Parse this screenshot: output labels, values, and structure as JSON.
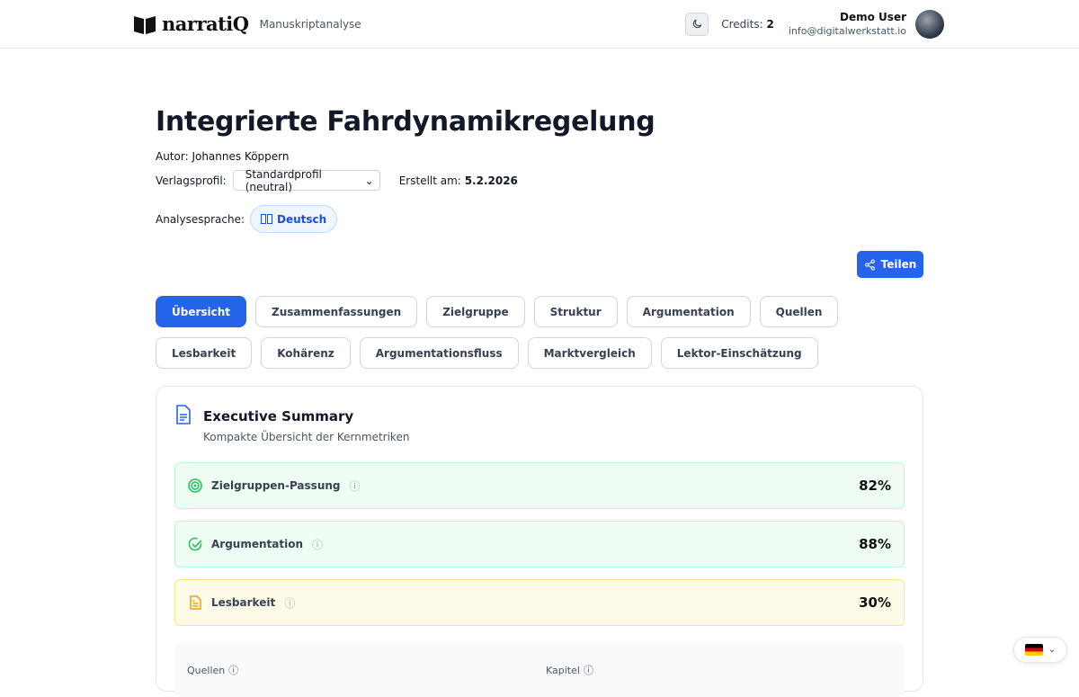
{
  "header": {
    "brand": "narratiQ",
    "subtitle": "Manuskriptanalyse",
    "credits_label": "Credits:",
    "credits_value": "2",
    "user_name": "Demo User",
    "user_email": "info@digitalwerkstatt.io"
  },
  "doc": {
    "title": "Integrierte Fahrdynamikregelung",
    "author": "Autor: Johannes Köppern",
    "profile_label": "Verlagsprofil:",
    "profile_value": "Standardprofil (neutral)",
    "created_label": "Erstellt am:",
    "created_value": "5.2.2026",
    "lang_label": "Analysesprache:",
    "lang_value": "Deutsch",
    "share_label": "Teilen"
  },
  "tabs": [
    {
      "label": "Übersicht",
      "active": true
    },
    {
      "label": "Zusammenfassungen"
    },
    {
      "label": "Zielgruppe"
    },
    {
      "label": "Struktur"
    },
    {
      "label": "Argumentation"
    },
    {
      "label": "Quellen"
    },
    {
      "label": "Lesbarkeit"
    },
    {
      "label": "Kohärenz"
    },
    {
      "label": "Argumentationsfluss"
    },
    {
      "label": "Marktvergleich"
    },
    {
      "label": "Lektor-Einschätzung"
    }
  ],
  "summary": {
    "title": "Executive Summary",
    "subtitle": "Kompakte Übersicht der Kernmetriken",
    "metrics": [
      {
        "label": "Zielgruppen-Passung",
        "value": "82%",
        "icon": "target-icon",
        "color": "#22c55e"
      },
      {
        "label": "Argumentation",
        "value": "88%",
        "icon": "check-circle-icon",
        "color": "#22c55e"
      },
      {
        "label": "Lesbarkeit",
        "value": "30%",
        "icon": "document-icon",
        "color": "#f59e0b"
      }
    ],
    "bottom": [
      "Quellen",
      "Kapitel"
    ]
  }
}
